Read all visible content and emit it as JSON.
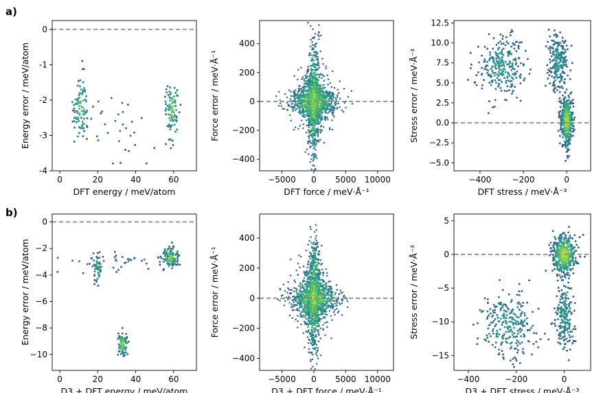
{
  "panel_labels": [
    "a)",
    "b)"
  ],
  "colors": {
    "point_low": "#3b528b",
    "point_mid": "#21918c",
    "point_high": "#fde725",
    "reference_line": "#808080",
    "axes": "#000000"
  },
  "chart_data": [
    {
      "id": "a-energy",
      "type": "scatter",
      "row": 0,
      "col": 0,
      "xlabel": "DFT energy / meV/atom",
      "ylabel": "Energy error / meV/atom",
      "xlim": [
        -4,
        72
      ],
      "ylim": [
        -4,
        0.25
      ],
      "xticks": [
        0,
        20,
        40,
        60
      ],
      "yticks": [
        -4,
        -3,
        -2,
        -1,
        0
      ],
      "reference_line_y": 0,
      "clusters": [
        {
          "cx": 11,
          "cy": -2.2,
          "sx": 2.0,
          "sy": 0.45,
          "n": 90,
          "density": 0.6
        },
        {
          "cx": 59,
          "cy": -2.2,
          "sx": 2.0,
          "sy": 0.45,
          "n": 90,
          "density": 0.6
        },
        {
          "cx": 30,
          "cy": -2.8,
          "sx": 9.0,
          "sy": 0.45,
          "n": 30,
          "density": 0.1
        }
      ],
      "grid": false
    },
    {
      "id": "a-force",
      "type": "scatter",
      "row": 0,
      "col": 1,
      "xlabel": "DFT force / meV·Å⁻¹",
      "ylabel": "Force error / meV·Å⁻¹",
      "xlim": [
        -8500,
        12500
      ],
      "ylim": [
        -480,
        560
      ],
      "xticks": [
        -5000,
        0,
        5000,
        10000
      ],
      "yticks": [
        -400,
        -200,
        0,
        200,
        400
      ],
      "tick_labels_x": [
        "−5000",
        "0",
        "5000",
        "10000"
      ],
      "tick_labels_y": [
        "−400",
        "−200",
        "0",
        "200",
        "400"
      ],
      "reference_line_y": 0,
      "clusters": [
        {
          "cx": 0,
          "cy": 0,
          "sx": 1900,
          "sy": 45,
          "n": 700,
          "density": 0.9
        },
        {
          "cx": 0,
          "cy": 0,
          "sx": 450,
          "sy": 190,
          "n": 700,
          "density": 0.9
        },
        {
          "cx": 0,
          "cy": 0,
          "sx": 1400,
          "sy": 110,
          "n": 500,
          "density": 0.7
        }
      ],
      "grid": false
    },
    {
      "id": "a-stress",
      "type": "scatter",
      "row": 0,
      "col": 2,
      "xlabel": "DFT stress / meV·Å⁻³",
      "ylabel": "Stress error / meV·Å⁻³",
      "xlim": [
        -520,
        110
      ],
      "ylim": [
        -6,
        12.8
      ],
      "xticks": [
        -400,
        -200,
        0
      ],
      "yticks": [
        -5.0,
        -2.5,
        0.0,
        2.5,
        5.0,
        7.5,
        10.0,
        12.5
      ],
      "tick_labels_x": [
        "−400",
        "−200",
        "0"
      ],
      "tick_labels_y": [
        "−5.0",
        "−2.5",
        "0.0",
        "2.5",
        "5.0",
        "7.5",
        "10.0",
        "12.5"
      ],
      "reference_line_y": 0,
      "clusters": [
        {
          "cx": -300,
          "cy": 7.0,
          "sx": 50,
          "sy": 1.9,
          "n": 260,
          "density": 0.35
        },
        {
          "cx": -40,
          "cy": 7.5,
          "sx": 22,
          "sy": 1.8,
          "n": 220,
          "density": 0.35
        },
        {
          "cx": 0,
          "cy": 0.3,
          "sx": 14,
          "sy": 1.6,
          "n": 420,
          "density": 0.85
        }
      ],
      "grid": false
    },
    {
      "id": "b-energy",
      "type": "scatter",
      "row": 1,
      "col": 0,
      "xlabel": "D3 + DFT energy / meV/atom",
      "ylabel": "Energy error / meV/atom",
      "xlim": [
        -4,
        72
      ],
      "ylim": [
        -11.2,
        0.6
      ],
      "xticks": [
        0,
        20,
        40,
        60
      ],
      "yticks": [
        -10,
        -8,
        -6,
        -4,
        -2,
        0
      ],
      "tick_labels_y": [
        "−10",
        "−8",
        "−6",
        "−4",
        "−2",
        "0"
      ],
      "reference_line_y": 0,
      "clusters": [
        {
          "cx": 20,
          "cy": -3.5,
          "sx": 1.3,
          "sy": 0.45,
          "n": 45,
          "density": 0.5
        },
        {
          "cx": 58,
          "cy": -2.7,
          "sx": 2.0,
          "sy": 0.35,
          "n": 110,
          "density": 0.75
        },
        {
          "cx": 33,
          "cy": -9.2,
          "sx": 1.3,
          "sy": 0.45,
          "n": 80,
          "density": 0.75
        },
        {
          "cx": 30,
          "cy": -3.0,
          "sx": 14,
          "sy": 0.45,
          "n": 40,
          "density": 0.1
        }
      ],
      "grid": false
    },
    {
      "id": "b-force",
      "type": "scatter",
      "row": 1,
      "col": 1,
      "xlabel": "D3 + DFT force / meV·Å⁻¹",
      "ylabel": "Force error / meV·Å⁻¹",
      "xlim": [
        -8500,
        12500
      ],
      "ylim": [
        -480,
        560
      ],
      "xticks": [
        -5000,
        0,
        5000,
        10000
      ],
      "yticks": [
        -400,
        -200,
        0,
        200,
        400
      ],
      "tick_labels_x": [
        "−5000",
        "0",
        "5000",
        "10000"
      ],
      "tick_labels_y": [
        "−400",
        "−200",
        "0",
        "200",
        "400"
      ],
      "reference_line_y": 0,
      "clusters": [
        {
          "cx": 0,
          "cy": 0,
          "sx": 1900,
          "sy": 45,
          "n": 700,
          "density": 0.9
        },
        {
          "cx": 0,
          "cy": 0,
          "sx": 450,
          "sy": 190,
          "n": 700,
          "density": 0.9
        },
        {
          "cx": 0,
          "cy": 0,
          "sx": 1400,
          "sy": 110,
          "n": 500,
          "density": 0.7
        }
      ],
      "grid": false
    },
    {
      "id": "b-stress",
      "type": "scatter",
      "row": 1,
      "col": 2,
      "xlabel": "D3 + DFT stress / meV·Å⁻³",
      "ylabel": "Stress error / meV·Å⁻³",
      "xlim": [
        -460,
        110
      ],
      "ylim": [
        -17.2,
        6
      ],
      "xticks": [
        -400,
        -200,
        0
      ],
      "yticks": [
        -15,
        -10,
        -5,
        0,
        5
      ],
      "tick_labels_x": [
        "−400",
        "−200",
        "0"
      ],
      "tick_labels_y": [
        "−15",
        "−10",
        "−5",
        "0",
        "5"
      ],
      "reference_line_y": 0,
      "clusters": [
        {
          "cx": -235,
          "cy": -10.5,
          "sx": 55,
          "sy": 2.4,
          "n": 260,
          "density": 0.35
        },
        {
          "cx": 0,
          "cy": -9.0,
          "sx": 20,
          "sy": 2.3,
          "n": 200,
          "density": 0.35
        },
        {
          "cx": 0,
          "cy": 0.0,
          "sx": 25,
          "sy": 1.5,
          "n": 420,
          "density": 0.85
        }
      ],
      "grid": false
    }
  ]
}
